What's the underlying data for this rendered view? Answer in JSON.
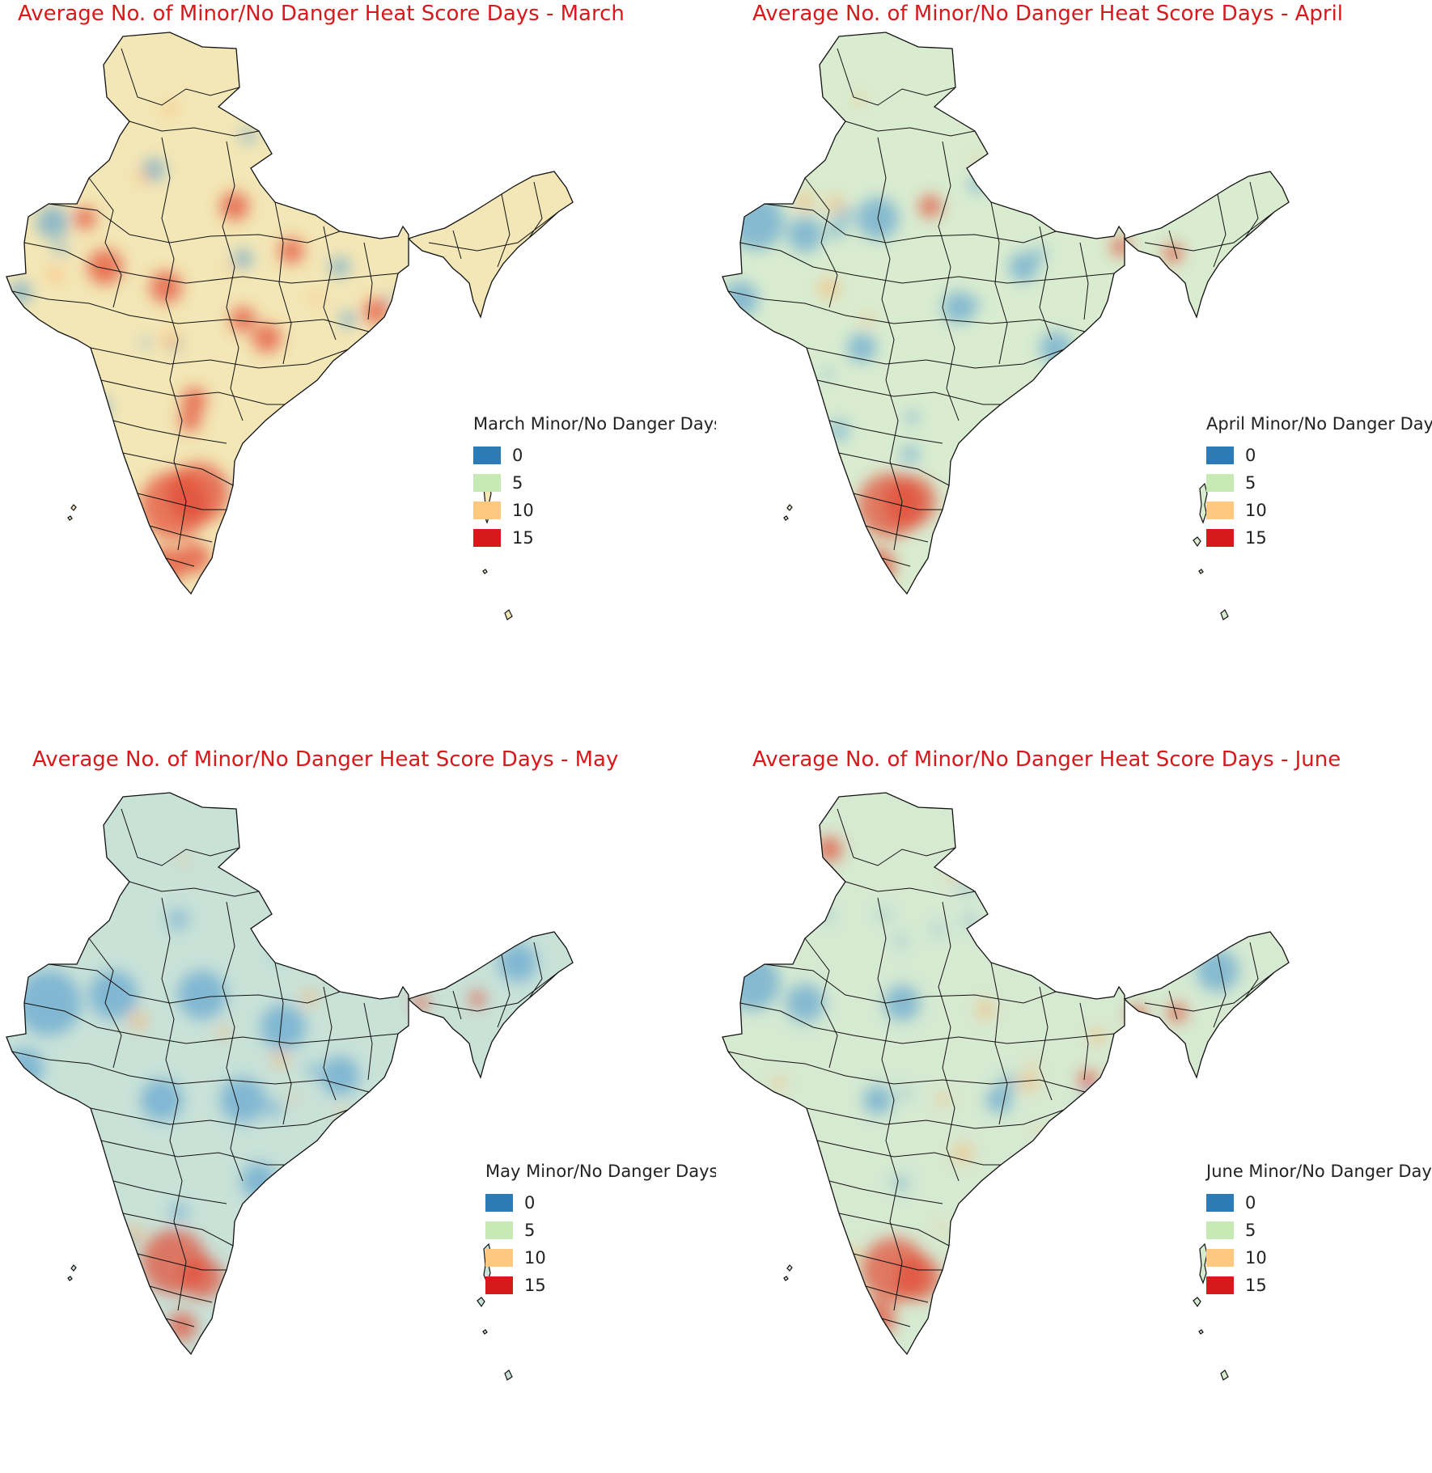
{
  "colors": {
    "title": "#d7191c",
    "scale": [
      "#2c7bb6",
      "#c7e9b4",
      "#fdc980",
      "#d7191c"
    ],
    "boundary": "#111111"
  },
  "panels": [
    {
      "id": "march",
      "title": "Average No. of Minor/No Danger Heat Score Days - March",
      "legend_title": "March Minor/No Danger Days",
      "base_tone": "#f3e7b7",
      "hotspot_color": "#e34a33",
      "cool_color": "#5b9fd0",
      "overall_level": "mostly 5-10 with red hotspots in the south and center"
    },
    {
      "id": "april",
      "title": "Average No. of Minor/No Danger Heat Score Days - April",
      "legend_title": "April Minor/No Danger Days",
      "base_tone": "#d9ecd0",
      "hotspot_color": "#e34a33",
      "cool_color": "#5b9fd0",
      "overall_level": "mostly around 5 with red hotspots in the south"
    },
    {
      "id": "may",
      "title": "Average No. of Minor/No Danger Heat Score Days - May",
      "legend_title": "May Minor/No  Danger Days",
      "base_tone": "#c9e2d8",
      "hotspot_color": "#e34a33",
      "cool_color": "#5b9fd0",
      "overall_level": "mostly 0-5 with red hotspots in the far south"
    },
    {
      "id": "june",
      "title": "Average No. of Minor/No Danger Heat Score Days - June",
      "legend_title": "June Minor/No Danger Days",
      "base_tone": "#d6ead2",
      "hotspot_color": "#e34a33",
      "cool_color": "#5b9fd0",
      "overall_level": "mostly around 5 with red hotspots in the south"
    }
  ],
  "legend_values": [
    "0",
    "5",
    "10",
    "15"
  ]
}
